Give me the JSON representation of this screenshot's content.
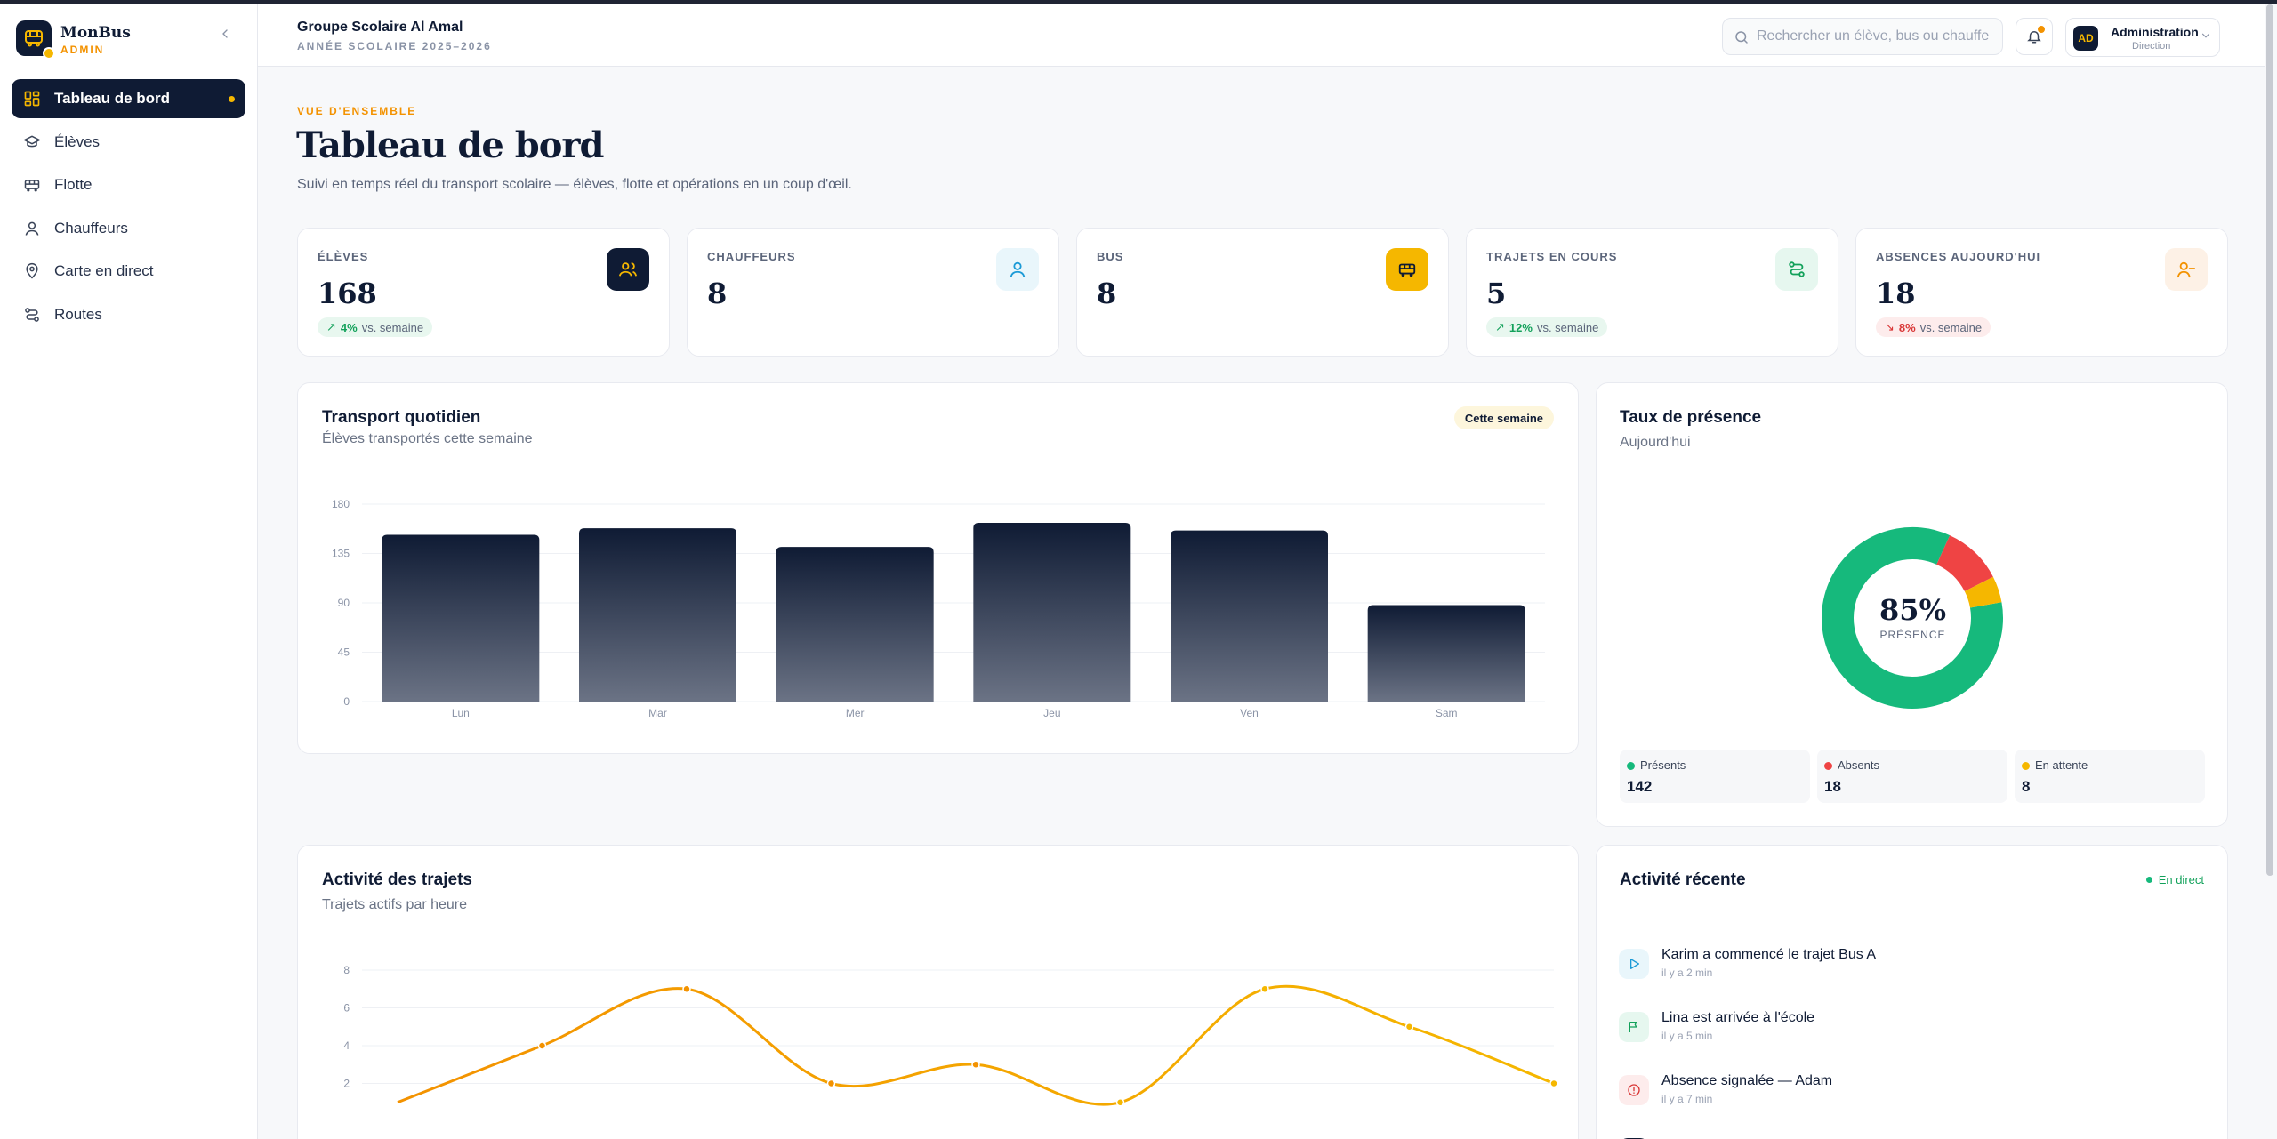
{
  "brand": {
    "name": "MonBus",
    "sub": "ADMIN"
  },
  "sidebar": {
    "items": [
      {
        "label": "Tableau de bord",
        "icon": "grid-icon",
        "active": true
      },
      {
        "label": "Élèves",
        "icon": "graduation-cap-icon"
      },
      {
        "label": "Flotte",
        "icon": "bus-icon"
      },
      {
        "label": "Chauffeurs",
        "icon": "user-icon"
      },
      {
        "label": "Carte en direct",
        "icon": "map-pin-icon"
      },
      {
        "label": "Routes",
        "icon": "route-icon"
      }
    ]
  },
  "header": {
    "school": "Groupe Scolaire Al Amal",
    "year": "ANNÉE SCOLAIRE 2025–2026",
    "search_placeholder": "Rechercher un élève, bus ou chauffeur",
    "user": {
      "initials": "AD",
      "name": "Administration",
      "role": "Direction"
    }
  },
  "page": {
    "eyebrow": "VUE D'ENSEMBLE",
    "title": "Tableau de bord",
    "subtitle": "Suivi en temps réel du transport scolaire — élèves, flotte et opérations en un coup d'œil."
  },
  "stats": [
    {
      "label": "ÉLÈVES",
      "value": "168",
      "trend": "4%",
      "trend_text": "vs. semaine",
      "direction": "up",
      "icon": "users-icon",
      "icon_bg": "#0f1b34",
      "icon_color": "#f5b700"
    },
    {
      "label": "CHAUFFEURS",
      "value": "8",
      "icon": "user-icon",
      "icon_bg": "#e9f6fb",
      "icon_color": "#1b9ad6"
    },
    {
      "label": "BUS",
      "value": "8",
      "icon": "bus-icon",
      "icon_bg": "#f5b700",
      "icon_color": "#0f1b34"
    },
    {
      "label": "TRAJETS EN COURS",
      "value": "5",
      "trend": "12%",
      "trend_text": "vs. semaine",
      "direction": "up",
      "icon": "route-icon",
      "icon_bg": "#e6f7ef",
      "icon_color": "#12a15a"
    },
    {
      "label": "ABSENCES AUJOURD'HUI",
      "value": "18",
      "trend": "8%",
      "trend_text": "vs. semaine",
      "direction": "down",
      "icon": "user-minus-icon",
      "icon_bg": "#fdf1e6",
      "icon_color": "#f39200"
    }
  ],
  "transport": {
    "title": "Transport quotidien",
    "subtitle": "Élèves transportés cette semaine",
    "pill": "Cette semaine"
  },
  "presence": {
    "title": "Taux de présence",
    "subtitle": "Aujourd'hui",
    "center_value": "85%",
    "center_label": "PRÉSENCE",
    "legend": [
      {
        "name": "Présents",
        "value": "142",
        "color": "#16b97c"
      },
      {
        "name": "Absents",
        "value": "18",
        "color": "#ef4444"
      },
      {
        "name": "En attente",
        "value": "8",
        "color": "#f5b700"
      }
    ]
  },
  "trips": {
    "title": "Activité des trajets",
    "subtitle": "Trajets actifs par heure"
  },
  "activity": {
    "title": "Activité récente",
    "live": "En direct",
    "items": [
      {
        "text": "Karim a commencé le trajet Bus A",
        "time": "il y a 2 min",
        "icon": "play-icon",
        "bg": "#e9f6fb",
        "color": "#1b9ad6"
      },
      {
        "text": "Lina est arrivée à l'école",
        "time": "il y a 5 min",
        "icon": "flag-icon",
        "bg": "#e6f7ef",
        "color": "#12a15a"
      },
      {
        "text": "Absence signalée — Adam",
        "time": "il y a 7 min",
        "icon": "alert-icon",
        "bg": "#fdecec",
        "color": "#d93636"
      }
    ]
  },
  "chart_data": [
    {
      "type": "bar",
      "categories": [
        "Lun",
        "Mar",
        "Mer",
        "Jeu",
        "Ven",
        "Sam"
      ],
      "values": [
        152,
        158,
        141,
        163,
        156,
        88
      ],
      "ylim": [
        0,
        180
      ],
      "yticks": [
        0,
        45,
        90,
        135,
        180
      ],
      "grid": true
    },
    {
      "type": "pie",
      "labels": [
        "Présents",
        "Absents",
        "En attente"
      ],
      "values": [
        142,
        18,
        8
      ]
    },
    {
      "type": "line",
      "x": [
        1,
        2,
        3,
        4,
        5,
        6,
        7,
        8,
        9
      ],
      "values": [
        1,
        4,
        7,
        2,
        3,
        1,
        7,
        5,
        2
      ],
      "ylim": [
        0,
        8
      ],
      "yticks": [
        2,
        4,
        6,
        8
      ],
      "colors": [
        "#f39200",
        "#f5b700"
      ],
      "grid": true
    }
  ]
}
